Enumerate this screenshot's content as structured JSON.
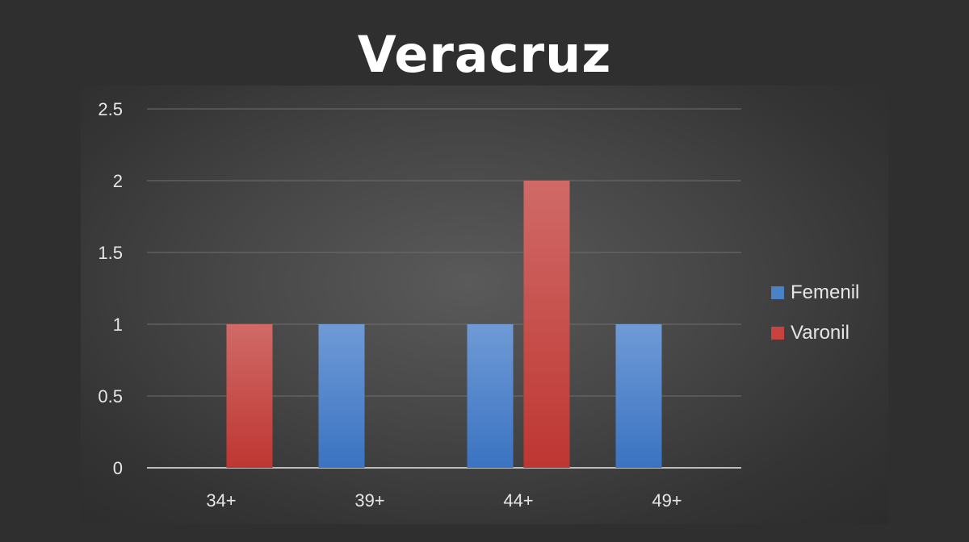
{
  "chart_data": {
    "type": "bar",
    "title": "Veracruz",
    "categories": [
      "34+",
      "39+",
      "44+",
      "49+"
    ],
    "series": [
      {
        "name": "Femenil",
        "values": [
          0,
          1,
          1,
          1
        ],
        "color": "#4a82c8"
      },
      {
        "name": "Varonil",
        "values": [
          1,
          0,
          2,
          0
        ],
        "color": "#c8423f"
      }
    ],
    "ylim": [
      0,
      2.5
    ],
    "yticks": [
      "0",
      "0.5",
      "1",
      "1.5",
      "2",
      "2.5"
    ],
    "xlabel": "",
    "ylabel": "",
    "grid": true,
    "legend": "right"
  }
}
